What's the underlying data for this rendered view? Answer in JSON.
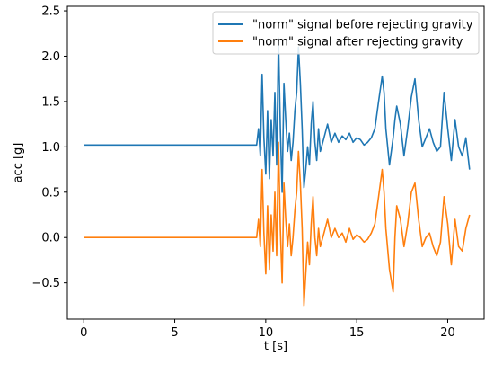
{
  "chart_data": {
    "type": "line",
    "xlabel": "t [s]",
    "ylabel": "acc [g]",
    "xlim": [
      -0.9,
      22.0
    ],
    "ylim": [
      -0.9,
      2.55
    ],
    "x_ticks": [
      0,
      5,
      10,
      15,
      20
    ],
    "x_tick_labels": [
      "0",
      "5",
      "10",
      "15",
      "20"
    ],
    "y_ticks": [
      -0.5,
      0.0,
      0.5,
      1.0,
      1.5,
      2.0,
      2.5
    ],
    "y_tick_labels": [
      "−0.5",
      "0.0",
      "0.5",
      "1.0",
      "1.5",
      "2.0",
      "2.5"
    ],
    "grid": false,
    "legend_position": "top-right",
    "series": [
      {
        "name": "\"norm\" signal before rejecting gravity",
        "color": "#1f77b4",
        "x": [
          0,
          1,
          2,
          3,
          4,
          5,
          6,
          7,
          8,
          9,
          9.5,
          9.6,
          9.7,
          9.8,
          9.9,
          10.0,
          10.1,
          10.2,
          10.3,
          10.4,
          10.5,
          10.6,
          10.7,
          10.8,
          10.9,
          11.0,
          11.1,
          11.2,
          11.3,
          11.4,
          11.5,
          11.6,
          11.7,
          11.8,
          11.9,
          12.0,
          12.1,
          12.2,
          12.3,
          12.4,
          12.5,
          12.6,
          12.7,
          12.8,
          12.9,
          13.0,
          13.2,
          13.4,
          13.6,
          13.8,
          14.0,
          14.2,
          14.4,
          14.6,
          14.8,
          15.0,
          15.2,
          15.4,
          15.6,
          15.8,
          16.0,
          16.2,
          16.4,
          16.5,
          16.6,
          16.8,
          17.0,
          17.1,
          17.2,
          17.4,
          17.6,
          17.8,
          18.0,
          18.2,
          18.4,
          18.6,
          18.8,
          19.0,
          19.2,
          19.4,
          19.6,
          19.8,
          20.0,
          20.2,
          20.4,
          20.6,
          20.8,
          21.0,
          21.2
        ],
        "y": [
          1.02,
          1.02,
          1.02,
          1.02,
          1.02,
          1.02,
          1.02,
          1.02,
          1.02,
          1.02,
          1.02,
          1.2,
          0.9,
          1.8,
          1.1,
          0.7,
          1.4,
          0.65,
          1.3,
          0.9,
          1.6,
          0.8,
          2.2,
          1.2,
          0.5,
          1.7,
          1.3,
          0.95,
          1.15,
          0.85,
          1.05,
          1.4,
          1.6,
          2.1,
          1.7,
          1.2,
          0.55,
          0.75,
          1.0,
          0.8,
          1.25,
          1.5,
          1.05,
          0.85,
          1.2,
          0.95,
          1.1,
          1.25,
          1.05,
          1.15,
          1.05,
          1.12,
          1.08,
          1.15,
          1.05,
          1.1,
          1.08,
          1.02,
          1.05,
          1.1,
          1.2,
          1.5,
          1.78,
          1.6,
          1.2,
          0.8,
          1.1,
          1.3,
          1.45,
          1.25,
          0.9,
          1.2,
          1.55,
          1.75,
          1.3,
          1.0,
          1.1,
          1.2,
          1.05,
          0.95,
          1.0,
          1.6,
          1.2,
          0.85,
          1.3,
          1.0,
          0.9,
          1.1,
          0.75
        ]
      },
      {
        "name": "\"norm\" signal after rejecting gravity",
        "color": "#ff7f0e",
        "x": [
          0,
          1,
          2,
          3,
          4,
          5,
          6,
          7,
          8,
          9,
          9.5,
          9.6,
          9.7,
          9.8,
          9.9,
          10.0,
          10.1,
          10.2,
          10.3,
          10.4,
          10.5,
          10.6,
          10.7,
          10.8,
          10.9,
          11.0,
          11.1,
          11.2,
          11.3,
          11.4,
          11.5,
          11.6,
          11.7,
          11.8,
          11.9,
          12.0,
          12.1,
          12.2,
          12.3,
          12.4,
          12.5,
          12.6,
          12.7,
          12.8,
          12.9,
          13.0,
          13.2,
          13.4,
          13.6,
          13.8,
          14.0,
          14.2,
          14.4,
          14.6,
          14.8,
          15.0,
          15.2,
          15.4,
          15.6,
          15.8,
          16.0,
          16.2,
          16.4,
          16.5,
          16.6,
          16.8,
          17.0,
          17.1,
          17.2,
          17.4,
          17.6,
          17.8,
          18.0,
          18.2,
          18.4,
          18.6,
          18.8,
          19.0,
          19.2,
          19.4,
          19.6,
          19.8,
          20.0,
          20.2,
          20.4,
          20.6,
          20.8,
          21.0,
          21.2
        ],
        "y": [
          0.0,
          0.0,
          0.0,
          0.0,
          0.0,
          0.0,
          0.0,
          0.0,
          0.0,
          0.0,
          0.0,
          0.2,
          -0.1,
          0.75,
          0.05,
          -0.4,
          0.35,
          -0.35,
          0.25,
          -0.15,
          0.5,
          -0.2,
          1.05,
          0.1,
          -0.5,
          0.6,
          0.2,
          -0.1,
          0.15,
          -0.2,
          0.0,
          0.3,
          0.5,
          0.95,
          0.6,
          0.1,
          -0.75,
          -0.4,
          -0.05,
          -0.3,
          0.15,
          0.45,
          0.0,
          -0.2,
          0.1,
          -0.1,
          0.05,
          0.2,
          0.0,
          0.1,
          0.0,
          0.05,
          -0.05,
          0.1,
          -0.02,
          0.03,
          0.0,
          -0.05,
          -0.02,
          0.05,
          0.15,
          0.45,
          0.75,
          0.5,
          0.1,
          -0.35,
          -0.6,
          0.0,
          0.35,
          0.2,
          -0.1,
          0.15,
          0.5,
          0.6,
          0.2,
          -0.1,
          0.0,
          0.05,
          -0.1,
          -0.2,
          -0.05,
          0.45,
          0.15,
          -0.3,
          0.2,
          -0.1,
          -0.15,
          0.1,
          0.25
        ]
      }
    ]
  }
}
